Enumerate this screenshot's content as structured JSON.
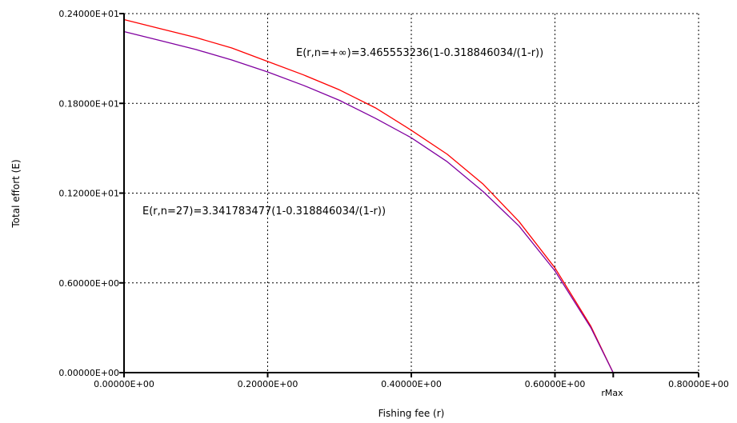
{
  "chart_data": {
    "type": "line",
    "title": "",
    "xlabel": "Fishing fee (r)",
    "ylabel": "Total effort (E)",
    "xlim": [
      0,
      0.8
    ],
    "ylim": [
      0,
      2.4
    ],
    "grid": "dotted",
    "x_ticks": [
      {
        "value": 0.0,
        "label": "0.00000E+00"
      },
      {
        "value": 0.2,
        "label": "0.20000E+00"
      },
      {
        "value": 0.4,
        "label": "0.40000E+00"
      },
      {
        "value": 0.6,
        "label": "0.60000E+00"
      },
      {
        "value": 0.8,
        "label": "0.80000E+00"
      }
    ],
    "y_ticks": [
      {
        "value": 0.0,
        "label": "0.00000E+00"
      },
      {
        "value": 0.6,
        "label": "0.60000E+00"
      },
      {
        "value": 1.2,
        "label": "0.12000E+01"
      },
      {
        "value": 1.8,
        "label": "0.18000E+01"
      },
      {
        "value": 2.4,
        "label": "0.24000E+01"
      }
    ],
    "rmax": {
      "value": 0.681153966,
      "label": "rMax"
    },
    "series": [
      {
        "color": "#ff0000",
        "coefficient": 3.465553236,
        "offset": 0.318846034,
        "x": [
          0.0,
          0.05,
          0.1,
          0.15,
          0.2,
          0.25,
          0.3,
          0.35,
          0.4,
          0.45,
          0.5,
          0.55,
          0.6,
          0.65,
          0.681
        ],
        "y": [
          2.36,
          2.3,
          2.24,
          2.17,
          2.08,
          1.99,
          1.89,
          1.77,
          1.62,
          1.46,
          1.26,
          1.01,
          0.7,
          0.31,
          0.0
        ]
      },
      {
        "color": "#8000a0",
        "coefficient": 3.341783477,
        "offset": 0.318846034,
        "x": [
          0.0,
          0.05,
          0.1,
          0.15,
          0.2,
          0.25,
          0.3,
          0.35,
          0.4,
          0.45,
          0.5,
          0.55,
          0.6,
          0.65,
          0.681
        ],
        "y": [
          2.28,
          2.22,
          2.16,
          2.09,
          2.01,
          1.92,
          1.82,
          1.7,
          1.57,
          1.41,
          1.21,
          0.98,
          0.68,
          0.3,
          0.0
        ]
      }
    ],
    "annotations": [
      {
        "text": "E(r,n=+∞)=3.465553236(1-0.318846034/(1-r))"
      },
      {
        "text": "E(r,n=27)=3.341783477(1-0.318846034/(1-r))"
      }
    ]
  }
}
